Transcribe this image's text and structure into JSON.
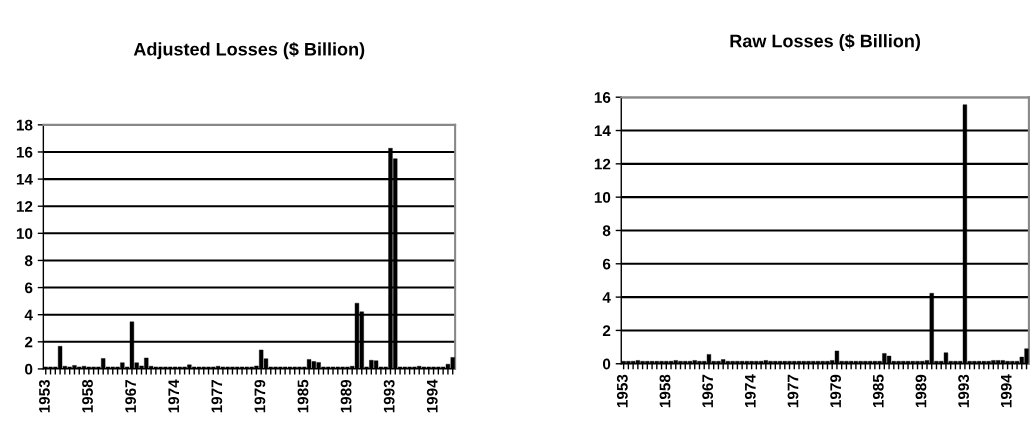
{
  "chart_data": [
    {
      "type": "bar",
      "title": "Adjusted Losses ($ Billion)",
      "color": "#000000",
      "ylim": [
        0,
        18
      ],
      "yticks": [
        0,
        2,
        4,
        6,
        8,
        10,
        12,
        14,
        16,
        18
      ],
      "grid": "y",
      "categories": [
        "1953",
        null,
        null,
        null,
        null,
        null,
        null,
        null,
        null,
        "1958",
        null,
        null,
        null,
        null,
        null,
        null,
        null,
        null,
        "1967",
        null,
        null,
        null,
        null,
        null,
        null,
        null,
        null,
        "1974",
        null,
        null,
        null,
        null,
        null,
        null,
        null,
        null,
        "1977",
        null,
        null,
        null,
        null,
        null,
        null,
        null,
        null,
        "1979",
        null,
        null,
        null,
        null,
        null,
        null,
        null,
        null,
        "1985",
        null,
        null,
        null,
        null,
        null,
        null,
        null,
        null,
        "1989",
        null,
        null,
        null,
        null,
        null,
        null,
        null,
        null,
        "1993",
        null,
        null,
        null,
        null,
        null,
        null,
        null,
        null,
        "1994",
        null,
        null,
        null,
        null
      ],
      "values": [
        0.15,
        0.15,
        0.15,
        1.67,
        0.2,
        0.15,
        0.26,
        0.15,
        0.2,
        0.15,
        0.15,
        0.15,
        0.77,
        0.15,
        0.15,
        0.15,
        0.46,
        0.15,
        3.47,
        0.45,
        0.22,
        0.81,
        0.2,
        0.15,
        0.15,
        0.15,
        0.15,
        0.15,
        0.15,
        0.15,
        0.3,
        0.15,
        0.15,
        0.15,
        0.15,
        0.15,
        0.2,
        0.15,
        0.15,
        0.15,
        0.15,
        0.15,
        0.15,
        0.15,
        0.22,
        1.4,
        0.75,
        0.15,
        0.15,
        0.15,
        0.15,
        0.15,
        0.15,
        0.15,
        0.15,
        0.7,
        0.55,
        0.48,
        0.15,
        0.15,
        0.15,
        0.15,
        0.15,
        0.15,
        0.2,
        4.85,
        4.21,
        0.15,
        0.64,
        0.6,
        0.15,
        0.15,
        16.27,
        15.5,
        0.15,
        0.15,
        0.15,
        0.15,
        0.2,
        0.15,
        0.15,
        0.15,
        0.15,
        0.15,
        0.35,
        0.85
      ]
    },
    {
      "type": "bar",
      "title": "Raw Losses ($ Billion)",
      "color": "#000000",
      "ylim": [
        0,
        16
      ],
      "yticks": [
        0,
        2,
        4,
        6,
        8,
        10,
        12,
        14,
        16
      ],
      "grid": "y",
      "categories": [
        "1953",
        null,
        null,
        null,
        null,
        null,
        null,
        null,
        null,
        "1958",
        null,
        null,
        null,
        null,
        null,
        null,
        null,
        null,
        "1967",
        null,
        null,
        null,
        null,
        null,
        null,
        null,
        null,
        "1974",
        null,
        null,
        null,
        null,
        null,
        null,
        null,
        null,
        "1977",
        null,
        null,
        null,
        null,
        null,
        null,
        null,
        null,
        "1979",
        null,
        null,
        null,
        null,
        null,
        null,
        null,
        null,
        "1985",
        null,
        null,
        null,
        null,
        null,
        null,
        null,
        null,
        "1989",
        null,
        null,
        null,
        null,
        null,
        null,
        null,
        null,
        "1993",
        null,
        null,
        null,
        null,
        null,
        null,
        null,
        null,
        "1994",
        null,
        null,
        null,
        null
      ],
      "values": [
        0.15,
        0.15,
        0.15,
        0.2,
        0.15,
        0.15,
        0.15,
        0.15,
        0.15,
        0.15,
        0.15,
        0.2,
        0.15,
        0.15,
        0.15,
        0.2,
        0.15,
        0.15,
        0.56,
        0.15,
        0.15,
        0.25,
        0.15,
        0.15,
        0.15,
        0.15,
        0.15,
        0.15,
        0.15,
        0.15,
        0.2,
        0.15,
        0.15,
        0.15,
        0.15,
        0.15,
        0.15,
        0.15,
        0.15,
        0.15,
        0.15,
        0.15,
        0.15,
        0.15,
        0.2,
        0.77,
        0.15,
        0.15,
        0.15,
        0.15,
        0.15,
        0.15,
        0.15,
        0.15,
        0.15,
        0.62,
        0.46,
        0.15,
        0.15,
        0.15,
        0.15,
        0.15,
        0.15,
        0.15,
        0.2,
        4.23,
        0.15,
        0.15,
        0.66,
        0.15,
        0.15,
        0.15,
        15.55,
        0.15,
        0.15,
        0.15,
        0.15,
        0.15,
        0.2,
        0.2,
        0.2,
        0.15,
        0.15,
        0.15,
        0.4,
        0.9
      ]
    }
  ]
}
